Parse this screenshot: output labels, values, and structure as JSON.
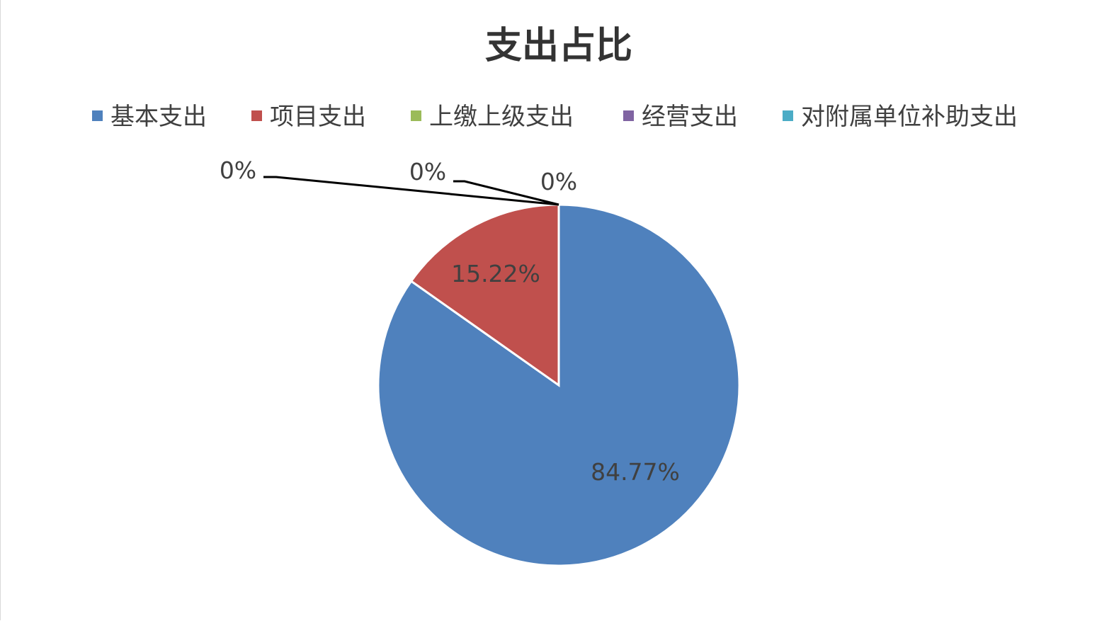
{
  "chart_data": {
    "type": "pie",
    "title": "支出占比",
    "categories": [
      "基本支出",
      "项目支出",
      "上缴上级支出",
      "经营支出",
      "对附属单位补助支出"
    ],
    "values": [
      84.77,
      15.22,
      0,
      0,
      0
    ],
    "data_labels": [
      "84.77%",
      "15.22%",
      "0%",
      "0%",
      "0%"
    ],
    "colors": [
      "#4f81bd",
      "#c0504d",
      "#9bbb59",
      "#8064a2",
      "#4bacc6"
    ],
    "legend_position": "top",
    "start_angle": "top, clockwise"
  }
}
